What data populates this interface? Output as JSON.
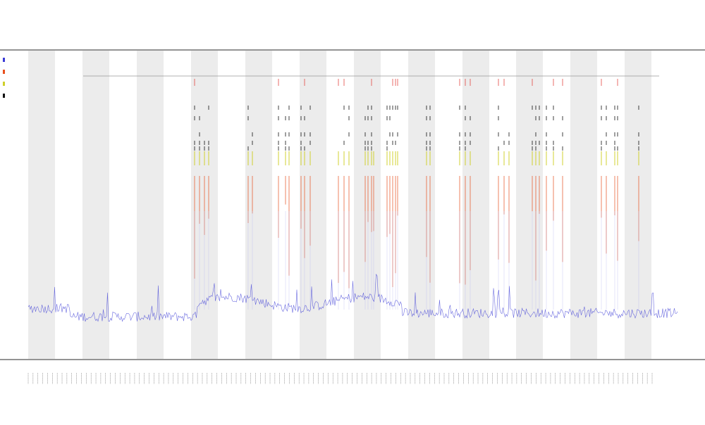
{
  "chart_data": {
    "type": "line",
    "title": "",
    "subtitle_lines": [
      "",
      ""
    ],
    "xlabel": "",
    "ylabel": "",
    "grid": false,
    "background_bands": true,
    "legend_placement": "left",
    "legend_entries": [
      "",
      "",
      "",
      ""
    ],
    "x_tick_count": 130,
    "series": [
      {
        "name": "",
        "color": "#3b3bd6",
        "kind": "line"
      },
      {
        "name": "",
        "color": "#e8501e",
        "kind": "spikes"
      },
      {
        "name": "",
        "color": "#cfcf2a",
        "kind": "spikes"
      },
      {
        "name": "",
        "color": "#111111",
        "kind": "spikes"
      },
      {
        "name": "",
        "color": "#e0302a",
        "kind": "spikes"
      }
    ],
    "ylim": [
      0,
      1
    ]
  }
}
